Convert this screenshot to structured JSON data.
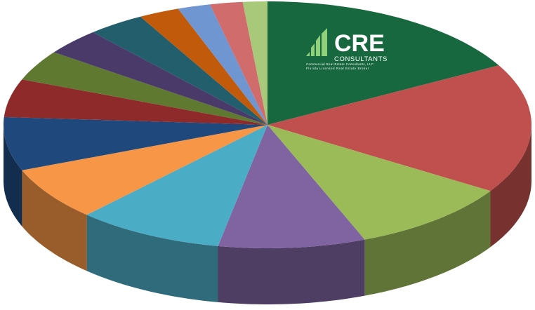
{
  "chart_data": {
    "type": "pie",
    "values": [
      17,
      17,
      10,
      9,
      9,
      7,
      7,
      5,
      4,
      3.5,
      3.5,
      2.5,
      2,
      2,
      1.5
    ],
    "colors": [
      "#17683f",
      "#c0504d",
      "#9bbb59",
      "#8064a2",
      "#4bacc6",
      "#f79646",
      "#1f497d",
      "#8e2a2a",
      "#5f7a30",
      "#4a3a6a",
      "#225e6c",
      "#c25a0c",
      "#6f96d0",
      "#d06c6c",
      "#a9c97a"
    ]
  },
  "logo": {
    "name": "CRE",
    "subtitle": "CONSULTANTS",
    "line1": "Commercial Real Estate Consultants, LLC",
    "line2": "Florida Licensed Real Estate Broker"
  }
}
